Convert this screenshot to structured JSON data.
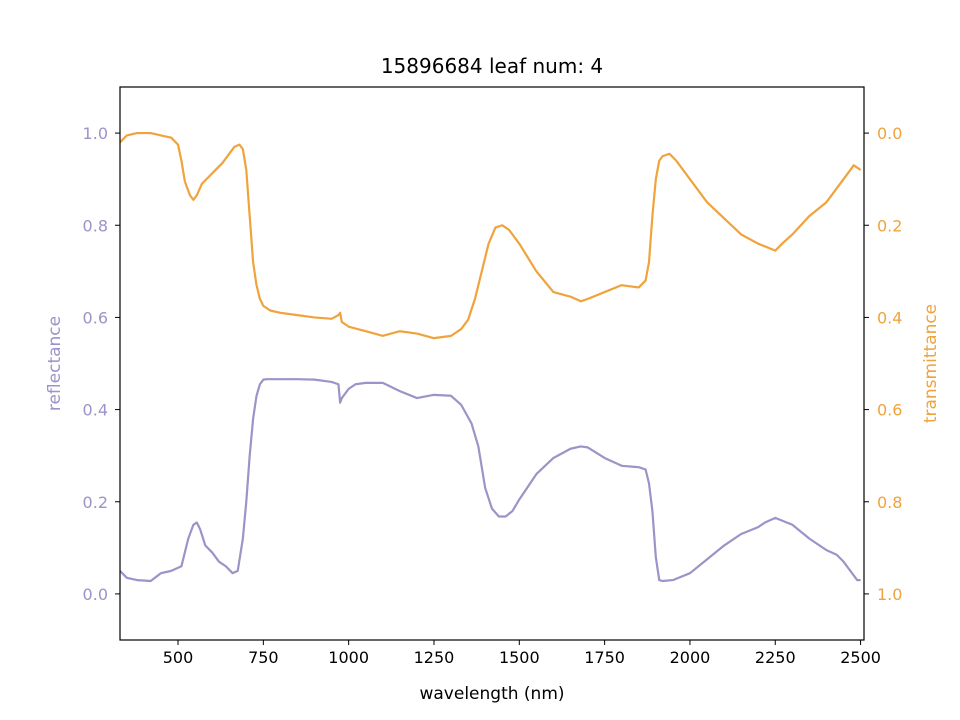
{
  "chart_data": {
    "type": "line",
    "title": "15896684 leaf num: 4",
    "xlabel": "wavelength (nm)",
    "ylabel_left": "reflectance",
    "ylabel_right": "transmittance",
    "xlim": [
      330,
      2510
    ],
    "ylim_left": [
      -0.1,
      1.1
    ],
    "ylim_right": [
      1.1,
      -0.1
    ],
    "right_axis_inverted": true,
    "grid": false,
    "x_ticks": [
      500,
      750,
      1000,
      1250,
      1500,
      1750,
      2000,
      2250,
      2500
    ],
    "x_tick_labels": [
      "500",
      "750",
      "1000",
      "1250",
      "1500",
      "1750",
      "2000",
      "2250",
      "2500"
    ],
    "y_left_ticks": [
      0.0,
      0.2,
      0.4,
      0.6,
      0.8,
      1.0
    ],
    "y_left_tick_labels": [
      "0.0",
      "0.2",
      "0.4",
      "0.6",
      "0.8",
      "1.0"
    ],
    "y_right_ticks": [
      0.0,
      0.2,
      0.4,
      0.6,
      0.8,
      1.0
    ],
    "y_right_tick_labels": [
      "0.0",
      "0.2",
      "0.4",
      "0.6",
      "0.8",
      "1.0"
    ],
    "colors": {
      "reflectance": "#9a94c8",
      "transmittance": "#f0a33c",
      "left_axis_text": "#9a94c8",
      "right_axis_text": "#f0a33c"
    },
    "series": [
      {
        "name": "reflectance",
        "axis": "left",
        "x": [
          330,
          350,
          380,
          420,
          450,
          480,
          510,
          530,
          545,
          555,
          565,
          580,
          600,
          620,
          640,
          660,
          675,
          690,
          700,
          710,
          720,
          730,
          740,
          750,
          760,
          770,
          780,
          800,
          850,
          900,
          950,
          970,
          975,
          980,
          1000,
          1020,
          1050,
          1100,
          1150,
          1200,
          1250,
          1300,
          1330,
          1360,
          1380,
          1400,
          1420,
          1440,
          1460,
          1480,
          1500,
          1550,
          1600,
          1650,
          1680,
          1700,
          1750,
          1800,
          1850,
          1870,
          1880,
          1890,
          1900,
          1910,
          1920,
          1950,
          2000,
          2050,
          2100,
          2150,
          2200,
          2220,
          2250,
          2300,
          2350,
          2400,
          2430,
          2450,
          2470,
          2490,
          2500
        ],
        "y": [
          0.05,
          0.035,
          0.03,
          0.028,
          0.045,
          0.05,
          0.06,
          0.12,
          0.15,
          0.155,
          0.14,
          0.105,
          0.09,
          0.07,
          0.06,
          0.045,
          0.05,
          0.12,
          0.2,
          0.3,
          0.38,
          0.43,
          0.455,
          0.465,
          0.466,
          0.466,
          0.466,
          0.466,
          0.466,
          0.465,
          0.46,
          0.455,
          0.415,
          0.425,
          0.445,
          0.455,
          0.458,
          0.458,
          0.44,
          0.425,
          0.432,
          0.43,
          0.41,
          0.37,
          0.32,
          0.23,
          0.185,
          0.168,
          0.168,
          0.18,
          0.205,
          0.26,
          0.295,
          0.315,
          0.32,
          0.318,
          0.295,
          0.278,
          0.275,
          0.27,
          0.24,
          0.18,
          0.08,
          0.03,
          0.028,
          0.03,
          0.045,
          0.075,
          0.105,
          0.13,
          0.145,
          0.155,
          0.165,
          0.15,
          0.12,
          0.095,
          0.085,
          0.07,
          0.05,
          0.03,
          0.03
        ]
      },
      {
        "name": "transmittance",
        "axis": "right",
        "x": [
          330,
          350,
          380,
          420,
          450,
          480,
          500,
          510,
          520,
          535,
          545,
          555,
          570,
          590,
          610,
          630,
          650,
          665,
          680,
          690,
          700,
          710,
          720,
          730,
          740,
          750,
          770,
          800,
          850,
          900,
          950,
          970,
          975,
          980,
          1000,
          1050,
          1100,
          1150,
          1200,
          1250,
          1300,
          1330,
          1350,
          1370,
          1390,
          1410,
          1430,
          1450,
          1470,
          1500,
          1550,
          1600,
          1650,
          1680,
          1700,
          1750,
          1800,
          1850,
          1870,
          1880,
          1890,
          1900,
          1910,
          1920,
          1940,
          1960,
          2000,
          2050,
          2100,
          2150,
          2200,
          2250,
          2270,
          2300,
          2350,
          2400,
          2450,
          2480,
          2500
        ],
        "y": [
          0.02,
          0.005,
          0.0,
          0.0,
          0.005,
          0.01,
          0.025,
          0.06,
          0.105,
          0.135,
          0.145,
          0.135,
          0.11,
          0.095,
          0.08,
          0.065,
          0.045,
          0.03,
          0.025,
          0.035,
          0.08,
          0.18,
          0.28,
          0.33,
          0.36,
          0.375,
          0.385,
          0.39,
          0.395,
          0.4,
          0.403,
          0.395,
          0.39,
          0.41,
          0.42,
          0.43,
          0.44,
          0.43,
          0.435,
          0.445,
          0.44,
          0.425,
          0.405,
          0.36,
          0.3,
          0.24,
          0.205,
          0.2,
          0.21,
          0.24,
          0.3,
          0.345,
          0.355,
          0.365,
          0.36,
          0.345,
          0.33,
          0.335,
          0.32,
          0.28,
          0.18,
          0.1,
          0.06,
          0.05,
          0.045,
          0.06,
          0.1,
          0.15,
          0.185,
          0.22,
          0.24,
          0.255,
          0.24,
          0.22,
          0.18,
          0.15,
          0.1,
          0.07,
          0.08
        ]
      }
    ]
  }
}
